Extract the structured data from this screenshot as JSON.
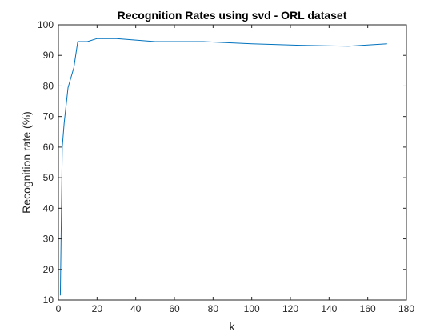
{
  "chart_data": {
    "type": "line",
    "title": "Recognition Rates using svd - ORL dataset",
    "xlabel": "k",
    "ylabel": "Recognition rate (%)",
    "xlim": [
      0,
      180
    ],
    "ylim": [
      10,
      100
    ],
    "xticks": [
      0,
      20,
      40,
      60,
      80,
      100,
      120,
      140,
      160,
      180
    ],
    "yticks": [
      10,
      20,
      30,
      40,
      50,
      60,
      70,
      80,
      90,
      100
    ],
    "grid": false,
    "series": [
      {
        "name": "recognition rate",
        "color": "#0072BD",
        "x": [
          1,
          2,
          3,
          5,
          8,
          10,
          15,
          20,
          30,
          50,
          75,
          100,
          125,
          150,
          170
        ],
        "y": [
          11.5,
          60,
          68,
          79.5,
          86,
          94.5,
          94.5,
          95.5,
          95.5,
          94.5,
          94.5,
          93.8,
          93.3,
          93,
          93.8
        ]
      }
    ]
  }
}
